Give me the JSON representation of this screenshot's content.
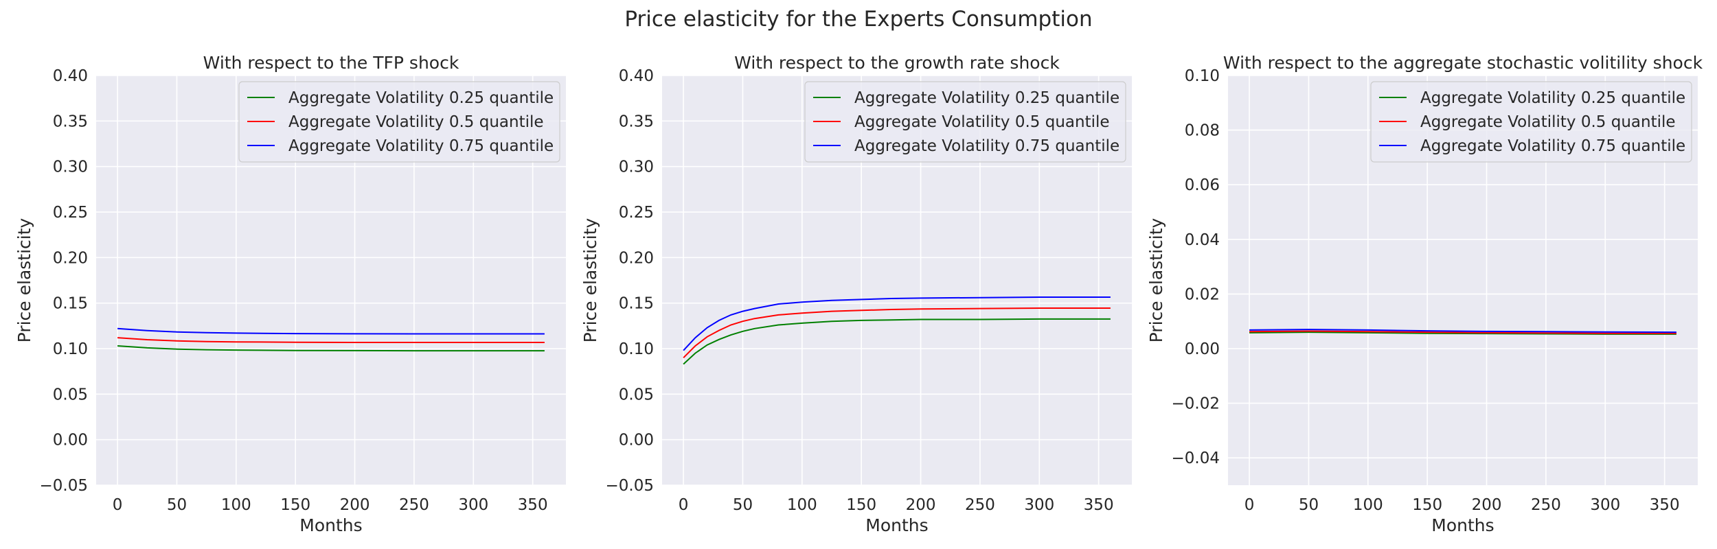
{
  "suptitle": "Price elasticity for the Experts Consumption",
  "colors": {
    "background": "#ffffff",
    "axes_face": "#eaeaf2",
    "grid": "#ffffff",
    "legend_face": "#eaeaf2",
    "legend_edge": "#cccccc"
  },
  "chart_data": [
    {
      "type": "line",
      "title": "With respect to the TFP shock",
      "xlabel": "Months",
      "ylabel": "Price elasticity",
      "xlim": [
        -18,
        378
      ],
      "ylim": [
        -0.05,
        0.4
      ],
      "xticks": [
        0,
        50,
        100,
        150,
        200,
        250,
        300,
        350
      ],
      "xtick_labels": [
        "0",
        "50",
        "100",
        "150",
        "200",
        "250",
        "300",
        "350"
      ],
      "yticks": [
        -0.05,
        0.0,
        0.05,
        0.1,
        0.15,
        0.2,
        0.25,
        0.3,
        0.35,
        0.4
      ],
      "ytick_labels": [
        "−0.05",
        "0.00",
        "0.05",
        "0.10",
        "0.15",
        "0.20",
        "0.25",
        "0.30",
        "0.35",
        "0.40"
      ],
      "grid": true,
      "legend_position": "top-right",
      "x": [
        0,
        25,
        50,
        75,
        100,
        150,
        200,
        250,
        300,
        360
      ],
      "series": [
        {
          "name": "Aggregate Volatility 0.25 quantile",
          "color": "green",
          "values": [
            0.103,
            0.1008,
            0.0995,
            0.0988,
            0.0984,
            0.098,
            0.0978,
            0.0977,
            0.0977,
            0.0977
          ]
        },
        {
          "name": "Aggregate Volatility 0.5 quantile",
          "color": "red",
          "values": [
            0.112,
            0.1098,
            0.1085,
            0.1078,
            0.1074,
            0.107,
            0.1068,
            0.1068,
            0.1068,
            0.1068
          ]
        },
        {
          "name": "Aggregate Volatility 0.75 quantile",
          "color": "blue",
          "values": [
            0.122,
            0.1198,
            0.1183,
            0.1175,
            0.117,
            0.1165,
            0.1163,
            0.1162,
            0.1162,
            0.1162
          ]
        }
      ]
    },
    {
      "type": "line",
      "title": "With respect to the growth rate shock",
      "xlabel": "Months",
      "ylabel": "Price elasticity",
      "xlim": [
        -18,
        378
      ],
      "ylim": [
        -0.05,
        0.4
      ],
      "xticks": [
        0,
        50,
        100,
        150,
        200,
        250,
        300,
        350
      ],
      "xtick_labels": [
        "0",
        "50",
        "100",
        "150",
        "200",
        "250",
        "300",
        "350"
      ],
      "yticks": [
        -0.05,
        0.0,
        0.05,
        0.1,
        0.15,
        0.2,
        0.25,
        0.3,
        0.35,
        0.4
      ],
      "ytick_labels": [
        "−0.05",
        "0.00",
        "0.05",
        "0.10",
        "0.15",
        "0.20",
        "0.25",
        "0.30",
        "0.35",
        "0.40"
      ],
      "grid": true,
      "legend_position": "top-right",
      "x": [
        0,
        10,
        20,
        30,
        40,
        50,
        60,
        80,
        100,
        125,
        150,
        175,
        200,
        250,
        300,
        360
      ],
      "series": [
        {
          "name": "Aggregate Volatility 0.25 quantile",
          "color": "green",
          "values": [
            0.083,
            0.095,
            0.104,
            0.11,
            0.115,
            0.119,
            0.122,
            0.126,
            0.128,
            0.13,
            0.131,
            0.1315,
            0.132,
            0.132,
            0.1325,
            0.1325
          ]
        },
        {
          "name": "Aggregate Volatility 0.5 quantile",
          "color": "red",
          "values": [
            0.09,
            0.103,
            0.113,
            0.12,
            0.126,
            0.13,
            0.133,
            0.137,
            0.139,
            0.141,
            0.142,
            0.143,
            0.1435,
            0.144,
            0.1445,
            0.1445
          ]
        },
        {
          "name": "Aggregate Volatility 0.75 quantile",
          "color": "blue",
          "values": [
            0.098,
            0.112,
            0.123,
            0.131,
            0.137,
            0.141,
            0.144,
            0.149,
            0.151,
            0.153,
            0.154,
            0.155,
            0.1555,
            0.156,
            0.1565,
            0.1565
          ]
        }
      ]
    },
    {
      "type": "line",
      "title": "With respect to the aggregate stochastic volitility shock",
      "xlabel": "Months",
      "ylabel": "Price elasticity",
      "xlim": [
        -18,
        378
      ],
      "ylim": [
        -0.05,
        0.1
      ],
      "xticks": [
        0,
        50,
        100,
        150,
        200,
        250,
        300,
        350
      ],
      "xtick_labels": [
        "0",
        "50",
        "100",
        "150",
        "200",
        "250",
        "300",
        "350"
      ],
      "yticks": [
        -0.04,
        -0.02,
        0.0,
        0.02,
        0.04,
        0.06,
        0.08,
        0.1
      ],
      "ytick_labels": [
        "−0.04",
        "−0.02",
        "0.00",
        "0.02",
        "0.04",
        "0.06",
        "0.08",
        "0.10"
      ],
      "grid": true,
      "legend_position": "top-right",
      "x": [
        0,
        50,
        100,
        150,
        200,
        250,
        300,
        360
      ],
      "series": [
        {
          "name": "Aggregate Volatility 0.25 quantile",
          "color": "green",
          "values": [
            0.0058,
            0.006,
            0.0058,
            0.0056,
            0.0055,
            0.0054,
            0.0053,
            0.0053
          ]
        },
        {
          "name": "Aggregate Volatility 0.5 quantile",
          "color": "red",
          "values": [
            0.0062,
            0.0064,
            0.0062,
            0.006,
            0.0058,
            0.0057,
            0.0056,
            0.0056
          ]
        },
        {
          "name": "Aggregate Volatility 0.75 quantile",
          "color": "blue",
          "values": [
            0.0068,
            0.007,
            0.0068,
            0.0065,
            0.0063,
            0.0062,
            0.0061,
            0.006
          ]
        }
      ]
    }
  ]
}
